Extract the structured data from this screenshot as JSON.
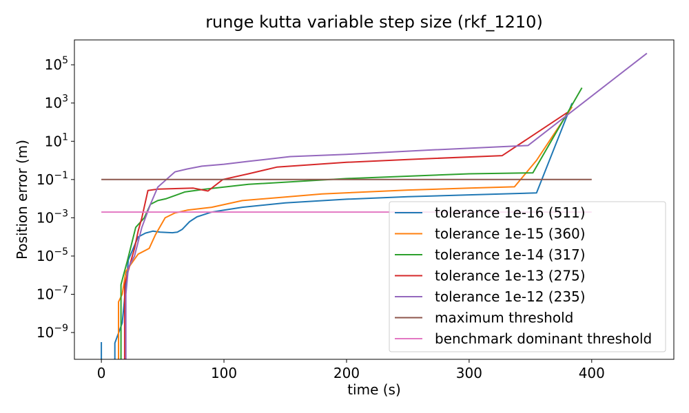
{
  "chart_data": {
    "type": "line",
    "title": "runge kutta variable step size (rkf_1210)",
    "xlabel": "time (s)",
    "ylabel": "Position error (m)",
    "y_scale": "log",
    "xlim": [
      -22,
      467
    ],
    "ylim_exponent": [
      -10.4,
      6.3
    ],
    "x_ticks": [
      {
        "value": 0,
        "label": "0"
      },
      {
        "value": 100,
        "label": "100"
      },
      {
        "value": 200,
        "label": "200"
      },
      {
        "value": 300,
        "label": "300"
      },
      {
        "value": 400,
        "label": "400"
      }
    ],
    "y_ticks": [
      {
        "exp": -9,
        "base": "10",
        "sup": "−9"
      },
      {
        "exp": -7,
        "base": "10",
        "sup": "−7"
      },
      {
        "exp": -5,
        "base": "10",
        "sup": "−5"
      },
      {
        "exp": -3,
        "base": "10",
        "sup": "−3"
      },
      {
        "exp": -1,
        "base": "10",
        "sup": "−1"
      },
      {
        "exp": 1,
        "base": "10",
        "sup": "1"
      },
      {
        "exp": 3,
        "base": "10",
        "sup": "3"
      },
      {
        "exp": 5,
        "base": "10",
        "sup": "5"
      }
    ],
    "grid": false,
    "legend_position": "lower-right",
    "series": [
      {
        "name": "tolerance 1e-16 (511)",
        "color": "#1f77b4",
        "points": [
          [
            11,
            -10.5
          ],
          [
            11,
            -9.55
          ],
          [
            17,
            -8.5
          ],
          [
            22,
            -5.2
          ],
          [
            30,
            -4.0
          ],
          [
            36,
            -3.8
          ],
          [
            42,
            -3.7
          ],
          [
            48,
            -3.75
          ],
          [
            58,
            -3.78
          ],
          [
            62,
            -3.75
          ],
          [
            66,
            -3.6
          ],
          [
            72,
            -3.2
          ],
          [
            78,
            -2.95
          ],
          [
            90,
            -2.7
          ],
          [
            100,
            -2.6
          ],
          [
            115,
            -2.45
          ],
          [
            150,
            -2.22
          ],
          [
            200,
            -2.03
          ],
          [
            250,
            -1.9
          ],
          [
            300,
            -1.8
          ],
          [
            355,
            -1.7
          ],
          [
            384,
            3.0
          ]
        ]
      },
      {
        "name": "tolerance 1e-15 (360)",
        "color": "#ff7f0e",
        "points": [
          [
            14,
            -10.5
          ],
          [
            14,
            -7.4
          ],
          [
            17,
            -7.0
          ],
          [
            20,
            -5.8
          ],
          [
            30,
            -4.9
          ],
          [
            39,
            -4.6
          ],
          [
            44,
            -3.9
          ],
          [
            52,
            -3.0
          ],
          [
            60,
            -2.75
          ],
          [
            70,
            -2.6
          ],
          [
            90,
            -2.45
          ],
          [
            115,
            -2.1
          ],
          [
            180,
            -1.75
          ],
          [
            250,
            -1.55
          ],
          [
            300,
            -1.45
          ],
          [
            337,
            -1.38
          ],
          [
            355,
            0.0
          ],
          [
            384,
            2.8
          ]
        ]
      },
      {
        "name": "tolerance 1e-14 (317)",
        "color": "#2ca02c",
        "points": [
          [
            16,
            -10.5
          ],
          [
            16,
            -6.5
          ],
          [
            18,
            -6.0
          ],
          [
            21,
            -5.3
          ],
          [
            28,
            -3.5
          ],
          [
            35,
            -3.0
          ],
          [
            40,
            -2.3
          ],
          [
            46,
            -2.1
          ],
          [
            53,
            -2.0
          ],
          [
            68,
            -1.65
          ],
          [
            85,
            -1.5
          ],
          [
            120,
            -1.25
          ],
          [
            200,
            -0.95
          ],
          [
            300,
            -0.7
          ],
          [
            352,
            -0.65
          ],
          [
            392,
            3.8
          ]
        ]
      },
      {
        "name": "tolerance 1e-13 (275)",
        "color": "#d62728",
        "points": [
          [
            19,
            -10.5
          ],
          [
            19,
            -6.5
          ],
          [
            23,
            -5.5
          ],
          [
            27,
            -4.6
          ],
          [
            30,
            -3.7
          ],
          [
            33,
            -3.0
          ],
          [
            38,
            -1.57
          ],
          [
            46,
            -1.5
          ],
          [
            75,
            -1.45
          ],
          [
            87,
            -1.6
          ],
          [
            99,
            -1.0
          ],
          [
            120,
            -0.7
          ],
          [
            143,
            -0.35
          ],
          [
            200,
            -0.1
          ],
          [
            250,
            0.05
          ],
          [
            327,
            0.25
          ],
          [
            380,
            2.5
          ]
        ]
      },
      {
        "name": "tolerance 1e-12 (235)",
        "color": "#9467bd",
        "points": [
          [
            20,
            -10.5
          ],
          [
            20,
            -7.0
          ],
          [
            22,
            -5.6
          ],
          [
            27,
            -5.0
          ],
          [
            33,
            -3.5
          ],
          [
            40,
            -2.3
          ],
          [
            46,
            -1.4
          ],
          [
            60,
            -0.6
          ],
          [
            70,
            -0.45
          ],
          [
            82,
            -0.3
          ],
          [
            100,
            -0.2
          ],
          [
            120,
            -0.05
          ],
          [
            154,
            0.2
          ],
          [
            200,
            0.32
          ],
          [
            270,
            0.55
          ],
          [
            348,
            0.78
          ],
          [
            445,
            5.6
          ]
        ]
      },
      {
        "name": "maximum threshold",
        "color": "#8c564b",
        "points": [
          [
            0,
            -1
          ],
          [
            400,
            -1
          ]
        ]
      },
      {
        "name": "benchmark dominant threshold",
        "color": "#e377c2",
        "points": [
          [
            0,
            -2.7
          ],
          [
            400,
            -2.7
          ]
        ]
      }
    ],
    "spike": {
      "color": "#1f77b4",
      "points": [
        [
          0,
          -10.5
        ],
        [
          0,
          -9.5
        ]
      ]
    }
  }
}
